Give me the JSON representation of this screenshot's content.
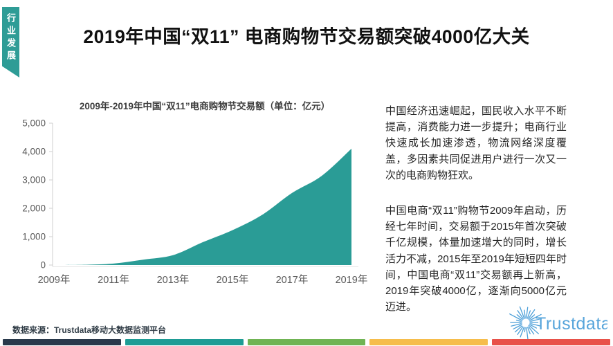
{
  "ribbon": {
    "label": "行业发展",
    "color": "#2E9C96"
  },
  "header": {
    "title": "2019年中国“双11” 电商购物节交易额突破4000亿大关"
  },
  "chart": {
    "subtitle": "2009年-2019年中国“双11”电商购物节交易额（单位：亿元）"
  },
  "chart_data": {
    "type": "area",
    "title": "2009年-2019年中国“双11”电商购物节交易额（单位：亿元）",
    "x": [
      2009,
      2010,
      2011,
      2012,
      2013,
      2014,
      2015,
      2016,
      2017,
      2018,
      2019
    ],
    "values": [
      1,
      9,
      52,
      191,
      350,
      805,
      1229,
      1770,
      2540,
      3143,
      4101
    ],
    "x_tick_labels": [
      "2009年",
      "2011年",
      "2013年",
      "2015年",
      "2017年",
      "2019年"
    ],
    "y_ticks": [
      0,
      1000,
      2000,
      3000,
      4000,
      5000
    ],
    "y_tick_labels": [
      "0",
      "1,000",
      "2,000",
      "3,000",
      "4,000",
      "5,000"
    ],
    "ylim": [
      0,
      5000
    ],
    "xlabel": "",
    "ylabel": "",
    "unit": "亿元",
    "grid": false,
    "legend": "none",
    "area_color": "#2A9C96",
    "axis_color": "#cfcfcf",
    "tick_label_color": "#595959"
  },
  "body": {
    "paragraphs": [
      "中国经济迅速崛起，国民收入水平不断提高，消费能力进一步提升；电商行业快速成长加速渗透，物流网络深度覆盖，多因素共同促进用户进行一次又一次的电商购物狂欢。",
      "中国电商“双11”购物节2009年启动，历经七年时间，交易额于2015年首次突破千亿规模，体量加速增大的同时，增长活力不减，2015年至2019年短短四年时间，中国电商“双11”交易额再上新高，2019年突破4000亿，逐渐向5000亿元迈进。"
    ]
  },
  "footer": {
    "source": "数据来源：Trustdata移动大数据监测平台",
    "logo_text": "Trustdata",
    "logo_color": "#57A5DB",
    "bar_colors": [
      "#29394B",
      "#1E9C95",
      "#70B454",
      "#F6BD4B",
      "#E85149"
    ]
  }
}
